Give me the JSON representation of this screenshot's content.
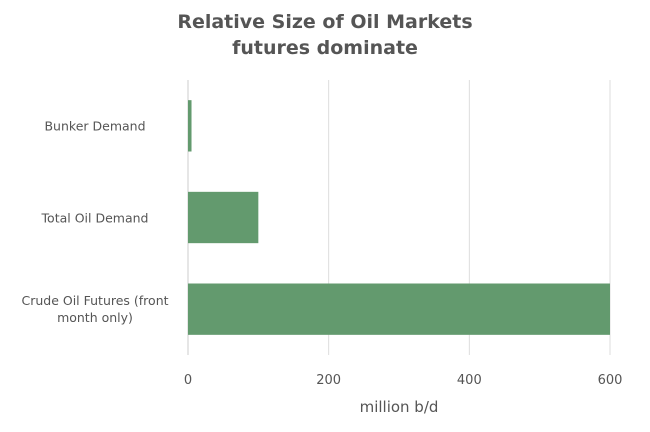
{
  "chart_data": {
    "type": "hbar",
    "title": "Relative Size of Oil Markets",
    "subtitle": "futures dominate",
    "categories": [
      "Bunker Demand",
      "Total Oil Demand",
      "Crude Oil Futures (front month only)"
    ],
    "values": [
      5,
      100,
      600
    ],
    "color": "#639a6e",
    "xlabel": "million b/d",
    "xlim": [
      0,
      600
    ],
    "xticks": [
      0,
      200,
      400,
      600
    ],
    "grid": true
  }
}
